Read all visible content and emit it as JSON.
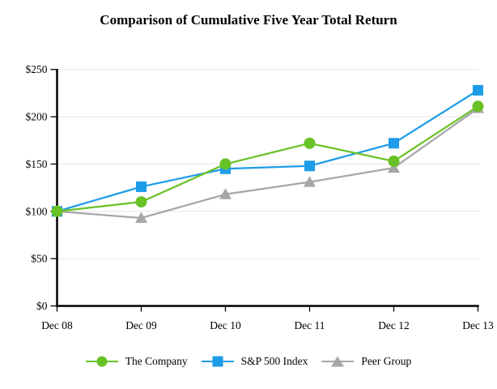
{
  "chart_data": {
    "type": "line",
    "title": "Comparison of Cumulative Five Year Total Return",
    "categories": [
      "Dec 08",
      "Dec 09",
      "Dec 10",
      "Dec 11",
      "Dec 12",
      "Dec 13"
    ],
    "series": [
      {
        "name": "The Company",
        "marker": "circle",
        "color": "#68c226",
        "values": [
          100,
          110,
          150,
          172,
          153,
          211
        ]
      },
      {
        "name": "S&P 500 Index",
        "marker": "square",
        "color": "#1e9ce9",
        "values": [
          100,
          126,
          145,
          148,
          172,
          228
        ]
      },
      {
        "name": "Peer Group",
        "marker": "triangle",
        "color": "#a6a6a6",
        "values": [
          100,
          93,
          118,
          131,
          146,
          209
        ]
      }
    ],
    "y_ticks": [
      {
        "label": "$0",
        "value": 0
      },
      {
        "label": "$50",
        "value": 50
      },
      {
        "label": "$100",
        "value": 100
      },
      {
        "label": "$150",
        "value": 150
      },
      {
        "label": "$200",
        "value": 200
      },
      {
        "label": "$250",
        "value": 250
      }
    ],
    "ylim": [
      0,
      250
    ],
    "xlabel": "",
    "ylabel": "",
    "grid": true,
    "legend_position": "bottom",
    "axis_color": "#000000",
    "grid_color": "#e6e6e6",
    "background_color": "#ffffff"
  }
}
